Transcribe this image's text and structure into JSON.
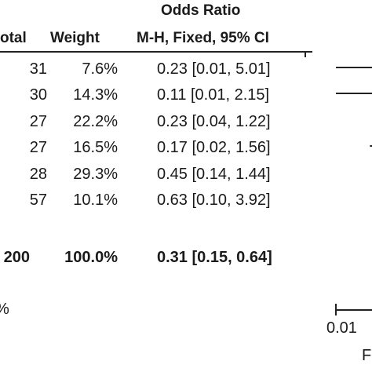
{
  "chart_data": {
    "type": "table",
    "header": {
      "group_title": "Odds Ratio",
      "col_total": "otal",
      "col_weight": "Weight",
      "col_ci": "M-H, Fixed, 95% CI"
    },
    "rows": [
      {
        "total": "31",
        "weight": "7.6%",
        "or_text": "0.23 [0.01, 5.01]",
        "or": 0.23,
        "lo": 0.01,
        "hi": 5.01
      },
      {
        "total": "30",
        "weight": "14.3%",
        "or_text": "0.11 [0.01, 2.15]",
        "or": 0.11,
        "lo": 0.01,
        "hi": 2.15
      },
      {
        "total": "27",
        "weight": "22.2%",
        "or_text": "0.23 [0.04, 1.22]",
        "or": 0.23,
        "lo": 0.04,
        "hi": 1.22
      },
      {
        "total": "27",
        "weight": "16.5%",
        "or_text": "0.17 [0.02, 1.56]",
        "or": 0.17,
        "lo": 0.02,
        "hi": 1.56
      },
      {
        "total": "28",
        "weight": "29.3%",
        "or_text": "0.45 [0.14, 1.44]",
        "or": 0.45,
        "lo": 0.14,
        "hi": 1.44
      },
      {
        "total": "57",
        "weight": "10.1%",
        "or_text": "0.63 [0.10, 3.92]",
        "or": 0.63,
        "lo": 0.1,
        "hi": 3.92
      }
    ],
    "total_row": {
      "total": "200",
      "weight": "100.0%",
      "or_text": "0.31 [0.15, 0.64]",
      "or": 0.31,
      "lo": 0.15,
      "hi": 0.64
    },
    "footer": {
      "left_fragment": "%",
      "axis_tick_label": "0.01",
      "axis_label_fragment": "F"
    },
    "axis": {
      "scale": "log",
      "visible_min": 0.01
    },
    "colors": {
      "ink": "#1a1a1a",
      "line": "#222222"
    }
  }
}
